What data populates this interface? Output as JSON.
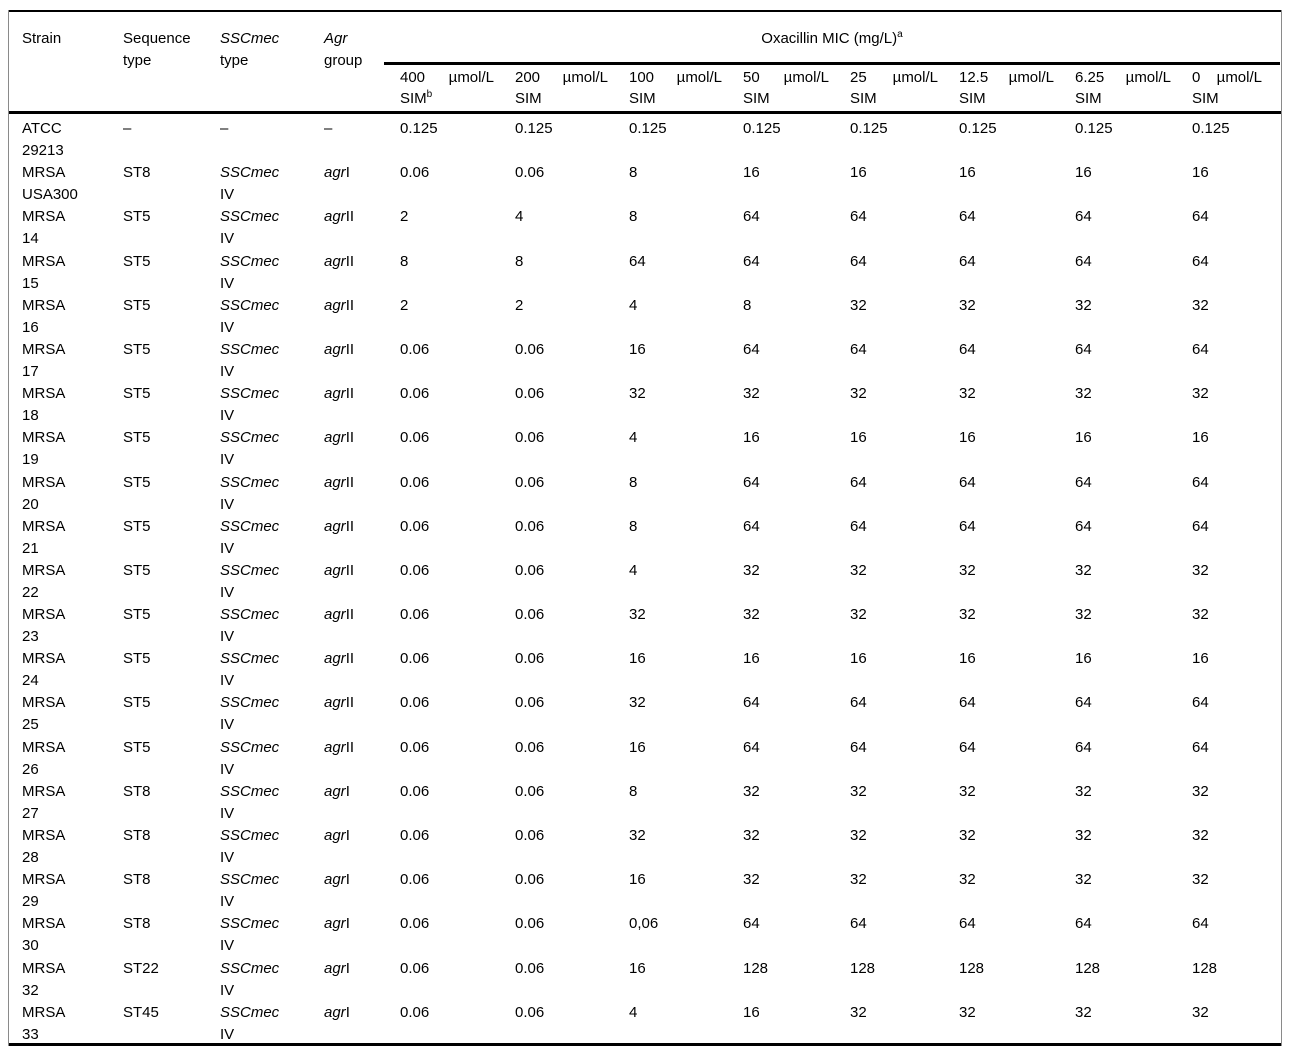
{
  "table": {
    "header": {
      "strain": "Strain",
      "sequence_line1": "Sequence",
      "sequence_line2": "type",
      "sccmec_word": "SSCmec",
      "sccmec_line2": "type",
      "agr_word": "Agr",
      "agr_line2": "group",
      "mic_group_label": "Oxacillin MIC (mg/L)",
      "mic_group_sup": "a",
      "mic_cols": [
        {
          "amount": "400",
          "unit": "µmol/L",
          "sim": "SIM",
          "sup": "b"
        },
        {
          "amount": "200",
          "unit": "µmol/L",
          "sim": "SIM",
          "sup": ""
        },
        {
          "amount": "100",
          "unit": "µmol/L",
          "sim": "SIM",
          "sup": ""
        },
        {
          "amount": "50",
          "unit": "µmol/L",
          "sim": "SIM",
          "sup": ""
        },
        {
          "amount": "25",
          "unit": "µmol/L",
          "sim": "SIM",
          "sup": ""
        },
        {
          "amount": "12.5",
          "unit": "µmol/L",
          "sim": "SIM",
          "sup": ""
        },
        {
          "amount": "6.25",
          "unit": "µmol/L",
          "sim": "SIM",
          "sup": ""
        },
        {
          "amount": "0",
          "unit": "µmol/L",
          "sim": "SIM",
          "sup": ""
        }
      ]
    },
    "rows": [
      {
        "strain1": "ATCC",
        "strain2": "29213",
        "st": "–",
        "sccmec1": "–",
        "sccmec2": "",
        "sccmec_italic": false,
        "agr_it": "",
        "agr_num": "–",
        "mic": [
          "0.125",
          "0.125",
          "0.125",
          "0.125",
          "0.125",
          "0.125",
          "0.125",
          "0.125"
        ]
      },
      {
        "strain1": "MRSA",
        "strain2": "USA300",
        "st": "ST8",
        "sccmec1": "SSCmec",
        "sccmec2": "IV",
        "sccmec_italic": true,
        "agr_it": "agr",
        "agr_num": "I",
        "mic": [
          "0.06",
          "0.06",
          "8",
          "16",
          "16",
          "16",
          "16",
          "16"
        ]
      },
      {
        "strain1": "MRSA",
        "strain2": "14",
        "st": "ST5",
        "sccmec1": "SSCmec",
        "sccmec2": "IV",
        "sccmec_italic": true,
        "agr_it": "agr",
        "agr_num": "II",
        "mic": [
          "2",
          "4",
          "8",
          "64",
          "64",
          "64",
          "64",
          "64"
        ]
      },
      {
        "strain1": "MRSA",
        "strain2": "15",
        "st": "ST5",
        "sccmec1": "SSCmec",
        "sccmec2": "IV",
        "sccmec_italic": true,
        "agr_it": "agr",
        "agr_num": "II",
        "mic": [
          "8",
          "8",
          "64",
          "64",
          "64",
          "64",
          "64",
          "64"
        ]
      },
      {
        "strain1": "MRSA",
        "strain2": "16",
        "st": "ST5",
        "sccmec1": "SSCmec",
        "sccmec2": "IV",
        "sccmec_italic": true,
        "agr_it": "agr",
        "agr_num": "II",
        "mic": [
          "2",
          "2",
          "4",
          "8",
          "32",
          "32",
          "32",
          "32"
        ]
      },
      {
        "strain1": "MRSA",
        "strain2": "17",
        "st": "ST5",
        "sccmec1": "SSCmec",
        "sccmec2": "IV",
        "sccmec_italic": true,
        "agr_it": "agr",
        "agr_num": "II",
        "mic": [
          "0.06",
          "0.06",
          "16",
          "64",
          "64",
          "64",
          "64",
          "64"
        ]
      },
      {
        "strain1": "MRSA",
        "strain2": "18",
        "st": "ST5",
        "sccmec1": "SSCmec",
        "sccmec2": "IV",
        "sccmec_italic": true,
        "agr_it": "agr",
        "agr_num": "II",
        "mic": [
          "0.06",
          "0.06",
          "32",
          "32",
          "32",
          "32",
          "32",
          "32"
        ]
      },
      {
        "strain1": "MRSA",
        "strain2": "19",
        "st": "ST5",
        "sccmec1": "SSCmec",
        "sccmec2": "IV",
        "sccmec_italic": true,
        "agr_it": "agr",
        "agr_num": "II",
        "mic": [
          "0.06",
          "0.06",
          "4",
          "16",
          "16",
          "16",
          "16",
          "16"
        ]
      },
      {
        "strain1": "MRSA",
        "strain2": "20",
        "st": "ST5",
        "sccmec1": "SSCmec",
        "sccmec2": "IV",
        "sccmec_italic": true,
        "agr_it": "agr",
        "agr_num": "II",
        "mic": [
          "0.06",
          "0.06",
          "8",
          "64",
          "64",
          "64",
          "64",
          "64"
        ]
      },
      {
        "strain1": "MRSA",
        "strain2": "21",
        "st": "ST5",
        "sccmec1": "SSCmec",
        "sccmec2": "IV",
        "sccmec_italic": true,
        "agr_it": "agr",
        "agr_num": "II",
        "mic": [
          "0.06",
          "0.06",
          "8",
          "64",
          "64",
          "64",
          "64",
          "64"
        ]
      },
      {
        "strain1": "MRSA",
        "strain2": "22",
        "st": "ST5",
        "sccmec1": "SSCmec",
        "sccmec2": "IV",
        "sccmec_italic": true,
        "agr_it": "agr",
        "agr_num": "II",
        "mic": [
          "0.06",
          "0.06",
          "4",
          "32",
          "32",
          "32",
          "32",
          "32"
        ]
      },
      {
        "strain1": "MRSA",
        "strain2": "23",
        "st": "ST5",
        "sccmec1": "SSCmec",
        "sccmec2": "IV",
        "sccmec_italic": true,
        "agr_it": "agr",
        "agr_num": "II",
        "mic": [
          "0.06",
          "0.06",
          "32",
          "32",
          "32",
          "32",
          "32",
          "32"
        ]
      },
      {
        "strain1": "MRSA",
        "strain2": "24",
        "st": "ST5",
        "sccmec1": "SSCmec",
        "sccmec2": "IV",
        "sccmec_italic": true,
        "agr_it": "agr",
        "agr_num": "II",
        "mic": [
          "0.06",
          "0.06",
          "16",
          "16",
          "16",
          "16",
          "16",
          "16"
        ]
      },
      {
        "strain1": "MRSA",
        "strain2": "25",
        "st": "ST5",
        "sccmec1": "SSCmec",
        "sccmec2": "IV",
        "sccmec_italic": true,
        "agr_it": "agr",
        "agr_num": "II",
        "mic": [
          "0.06",
          "0.06",
          "32",
          "64",
          "64",
          "64",
          "64",
          "64"
        ]
      },
      {
        "strain1": "MRSA",
        "strain2": "26",
        "st": "ST5",
        "sccmec1": "SSCmec",
        "sccmec2": "IV",
        "sccmec_italic": true,
        "agr_it": "agr",
        "agr_num": "II",
        "mic": [
          "0.06",
          "0.06",
          "16",
          "64",
          "64",
          "64",
          "64",
          "64"
        ]
      },
      {
        "strain1": "MRSA",
        "strain2": "27",
        "st": "ST8",
        "sccmec1": "SSCmec",
        "sccmec2": "IV",
        "sccmec_italic": true,
        "agr_it": "agr",
        "agr_num": "I",
        "mic": [
          "0.06",
          "0.06",
          "8",
          "32",
          "32",
          "32",
          "32",
          "32"
        ]
      },
      {
        "strain1": "MRSA",
        "strain2": "28",
        "st": "ST8",
        "sccmec1": "SSCmec",
        "sccmec2": "IV",
        "sccmec_italic": true,
        "agr_it": "agr",
        "agr_num": "I",
        "mic": [
          "0.06",
          "0.06",
          "32",
          "32",
          "32",
          "32",
          "32",
          "32"
        ]
      },
      {
        "strain1": "MRSA",
        "strain2": "29",
        "st": "ST8",
        "sccmec1": "SSCmec",
        "sccmec2": "IV",
        "sccmec_italic": true,
        "agr_it": "agr",
        "agr_num": "I",
        "mic": [
          "0.06",
          "0.06",
          "16",
          "32",
          "32",
          "32",
          "32",
          "32"
        ]
      },
      {
        "strain1": "MRSA",
        "strain2": "30",
        "st": "ST8",
        "sccmec1": "SSCmec",
        "sccmec2": "IV",
        "sccmec_italic": true,
        "agr_it": "agr",
        "agr_num": "I",
        "mic": [
          "0.06",
          "0.06",
          "0,06",
          "64",
          "64",
          "64",
          "64",
          "64"
        ]
      },
      {
        "strain1": "MRSA",
        "strain2": "32",
        "st": "ST22",
        "sccmec1": "SSCmec",
        "sccmec2": "IV",
        "sccmec_italic": true,
        "agr_it": "agr",
        "agr_num": "I",
        "mic": [
          "0.06",
          "0.06",
          "16",
          "128",
          "128",
          "128",
          "128",
          "128"
        ]
      },
      {
        "strain1": "MRSA",
        "strain2": "33",
        "st": "ST45",
        "sccmec1": "SSCmec",
        "sccmec2": "IV",
        "sccmec_italic": true,
        "agr_it": "agr",
        "agr_num": "I",
        "mic": [
          "0.06",
          "0.06",
          "4",
          "16",
          "32",
          "32",
          "32",
          "32"
        ]
      }
    ]
  }
}
